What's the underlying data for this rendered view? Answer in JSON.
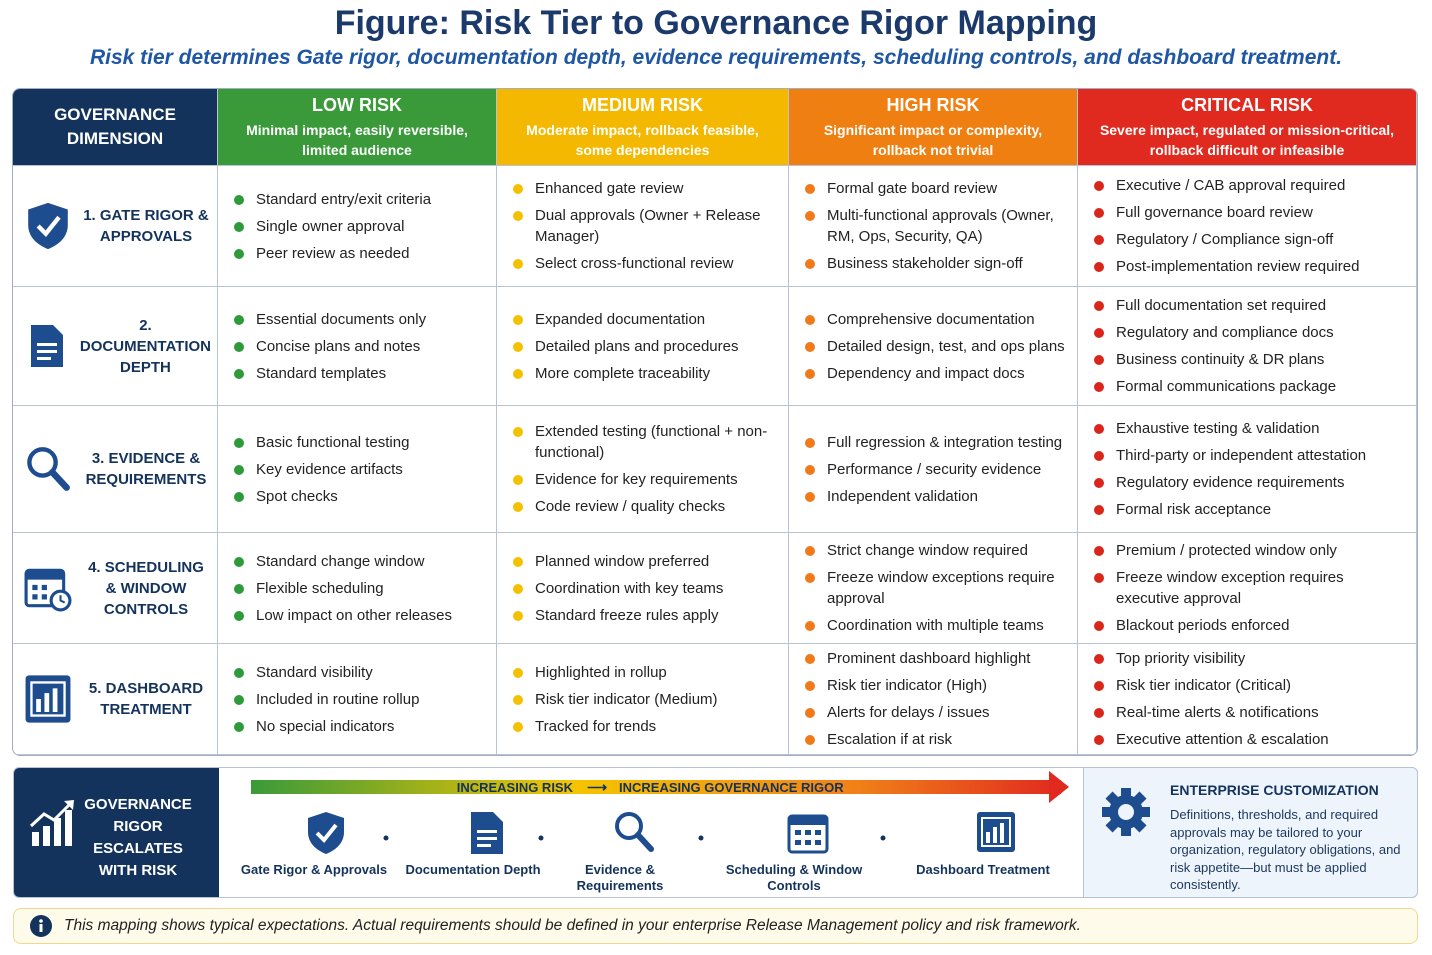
{
  "header": {
    "title": "Figure: Risk Tier to Governance Rigor Mapping",
    "subtitle": "Risk tier determines Gate rigor, documentation depth, evidence requirements, scheduling controls, and dashboard treatment."
  },
  "table": {
    "corner": "GOVERNANCE DIMENSION",
    "tiers": [
      {
        "name": "LOW RISK",
        "description": "Minimal impact, easily reversible, limited audience"
      },
      {
        "name": "MEDIUM RISK",
        "description": "Moderate impact, rollback feasible, some dependencies"
      },
      {
        "name": "HIGH RISK",
        "description": "Significant impact or complexity, rollback not trivial"
      },
      {
        "name": "CRITICAL RISK",
        "description": "Severe impact, regulated or mission-critical, rollback difficult or infeasible"
      }
    ],
    "rows": [
      {
        "dimension": "1. GATE RIGOR & APPROVALS",
        "cells": [
          [
            "Standard entry/exit criteria",
            "Single owner approval",
            "Peer review as needed"
          ],
          [
            "Enhanced gate review",
            "Dual approvals (Owner + Release Manager)",
            "Select cross-functional review"
          ],
          [
            "Formal gate board review",
            "Multi-functional approvals (Owner, RM, Ops, Security, QA)",
            "Business stakeholder sign-off"
          ],
          [
            "Executive / CAB approval required",
            "Full governance board review",
            "Regulatory / Compliance sign-off",
            "Post-implementation review required"
          ]
        ]
      },
      {
        "dimension": "2. DOCUMENTATION DEPTH",
        "cells": [
          [
            "Essential documents only",
            "Concise plans and notes",
            "Standard templates"
          ],
          [
            "Expanded documentation",
            "Detailed plans and procedures",
            "More complete traceability"
          ],
          [
            "Comprehensive documentation",
            "Detailed design, test, and ops plans",
            "Dependency and impact docs"
          ],
          [
            "Full documentation set required",
            "Regulatory and compliance docs",
            "Business continuity & DR plans",
            "Formal communications package"
          ]
        ]
      },
      {
        "dimension": "3. EVIDENCE & REQUIREMENTS",
        "cells": [
          [
            "Basic functional testing",
            "Key evidence artifacts",
            "Spot checks"
          ],
          [
            "Extended testing (functional + non-functional)",
            "Evidence for key requirements",
            "Code review / quality checks"
          ],
          [
            "Full regression & integration testing",
            "Performance / security evidence",
            "Independent validation"
          ],
          [
            "Exhaustive testing & validation",
            "Third-party or independent attestation",
            "Regulatory evidence requirements",
            "Formal risk acceptance"
          ]
        ]
      },
      {
        "dimension": "4. SCHEDULING & WINDOW CONTROLS",
        "cells": [
          [
            "Standard change window",
            "Flexible scheduling",
            "Low impact on other releases"
          ],
          [
            "Planned window preferred",
            "Coordination with key teams",
            "Standard freeze rules apply"
          ],
          [
            "Strict change window required",
            "Freeze window exceptions require approval",
            "Coordination with multiple teams"
          ],
          [
            "Premium / protected window only",
            "Freeze window exception requires executive approval",
            "Blackout periods enforced"
          ]
        ]
      },
      {
        "dimension": "5. DASHBOARD TREATMENT",
        "cells": [
          [
            "Standard visibility",
            "Included in routine rollup",
            "No special indicators"
          ],
          [
            "Highlighted in rollup",
            "Risk tier indicator (Medium)",
            "Tracked for trends"
          ],
          [
            "Prominent dashboard highlight",
            "Risk tier indicator (High)",
            "Alerts for delays / issues",
            "Escalation if at risk"
          ],
          [
            "Top priority visibility",
            "Risk tier indicator (Critical)",
            "Real-time alerts & notifications",
            "Executive attention & escalation"
          ]
        ]
      }
    ]
  },
  "escalation": {
    "label": "GOVERNANCE RIGOR ESCALATES WITH RISK",
    "arrow_left": "INCREASING RISK",
    "arrow_right": "INCREASING GOVERNANCE RIGOR",
    "steps": [
      "Gate Rigor & Approvals",
      "Documentation Depth",
      "Evidence & Requirements",
      "Scheduling & Window Controls",
      "Dashboard Treatment"
    ]
  },
  "customization": {
    "title": "ENTERPRISE CUSTOMIZATION",
    "text": "Definitions, thresholds, and required approvals may be tailored to your organization, regulatory obligations, and risk appetite—but must be applied consistently."
  },
  "note": "This mapping shows typical expectations. Actual requirements should be defined in your enterprise Release Management policy and risk framework."
}
